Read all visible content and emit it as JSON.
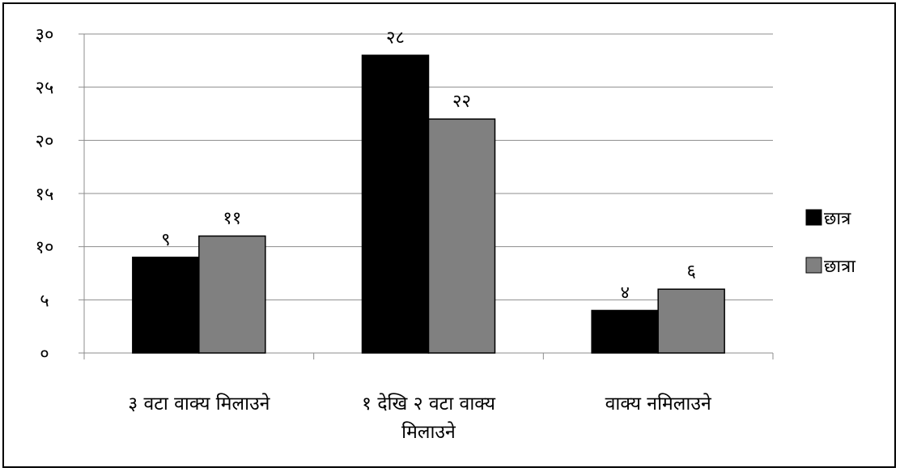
{
  "chart_data": {
    "type": "bar",
    "categories": [
      [
        "३ वटा वाक्य मिलाउने"
      ],
      [
        "१ देखि २ वटा वाक्य",
        "मिलाउने"
      ],
      [
        "वाक्य नमिलाउने"
      ]
    ],
    "series": [
      {
        "name": "छात्र",
        "values": [
          9,
          28,
          4
        ],
        "labels": [
          "९",
          "२८",
          "४"
        ],
        "color": "#000000"
      },
      {
        "name": "छात्रा",
        "values": [
          11,
          22,
          6
        ],
        "labels": [
          "११",
          "२२",
          "६"
        ],
        "color": "#808080"
      }
    ],
    "ylim": [
      0,
      30
    ],
    "yticks": [
      0,
      5,
      10,
      15,
      20,
      25,
      30
    ],
    "ytick_labels": [
      "०",
      "५",
      "१०",
      "१५",
      "२०",
      "२५",
      "३०"
    ],
    "grid": true,
    "legend_position": "right"
  }
}
